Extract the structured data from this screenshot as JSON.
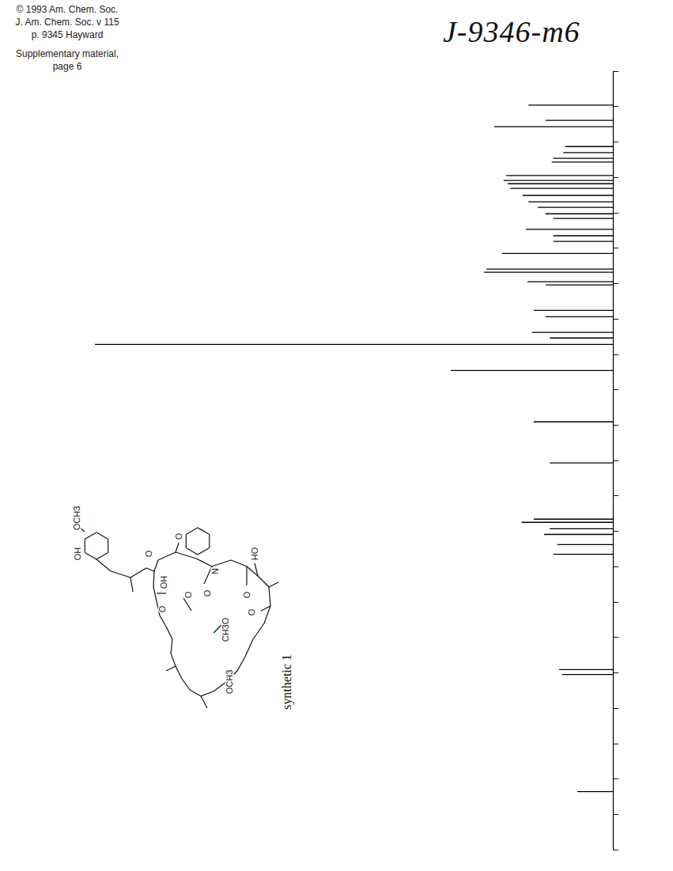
{
  "header": {
    "lines": [
      "© 1993 Am. Chem. Soc.",
      "J. Am. Chem. Soc. v 115",
      "p. 9345 Hayward"
    ],
    "note": [
      "Supplementary material,",
      "page 6"
    ]
  },
  "handwritten": "J-9346-m6",
  "structure": {
    "caption": "synthetic 1",
    "atom_labels": [
      "OCH3",
      "OH",
      "OH",
      "O",
      "O",
      "CH3O",
      "OCH3",
      "O",
      "O",
      "N",
      "O",
      "O",
      "HO",
      "O"
    ]
  },
  "chart_data": {
    "type": "spectrum",
    "orientation": "horizontal",
    "color": "#000000",
    "grid": false,
    "tick_labels": false,
    "x": [
      9.6,
      13.9,
      15.7,
      21.3,
      23.0,
      24.6,
      25.7,
      29.5,
      30.9,
      31.8,
      33.1,
      35.1,
      36.9,
      38.5,
      40.3,
      41.6,
      44.7,
      46.5,
      48.1,
      51.5,
      55.9,
      56.8,
      59.5,
      60.4,
      67.6,
      69.4,
      73.8,
      75.4,
      77.2,
      84.6,
      99.1,
      110.7,
      126.6,
      127.5,
      129.3,
      130.9,
      133.8,
      136.5,
      169.1,
      170.5,
      203.6
    ],
    "values": [
      16.3,
      13.0,
      22.9,
      9.2,
      9.6,
      11.5,
      11.8,
      20.6,
      21.1,
      20.3,
      19.8,
      17.4,
      16.3,
      14.5,
      13.0,
      11.5,
      16.8,
      11.5,
      11.5,
      21.4,
      24.4,
      24.9,
      16.5,
      13.0,
      15.3,
      13.0,
      15.6,
      12.2,
      100,
      31.3,
      15.3,
      12.2,
      15.3,
      17.6,
      12.2,
      13.3,
      10.7,
      11.5,
      10.4,
      9.8,
      6.9
    ],
    "xlim": [
      0,
      220
    ],
    "xticks": [
      0,
      10,
      20,
      30,
      40,
      50,
      60,
      70,
      80,
      90,
      100,
      110,
      120,
      130,
      140,
      150,
      160,
      170,
      180,
      190,
      200,
      210,
      220
    ],
    "ylim": [
      0,
      100
    ]
  }
}
